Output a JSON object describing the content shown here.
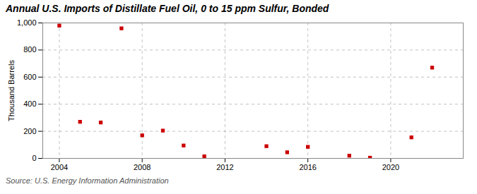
{
  "chart_data": {
    "type": "scatter",
    "title": "Annual U.S. Imports of Distillate Fuel Oil, 0 to 15 ppm Sulfur, Bonded",
    "ylabel": "Thousand Barrels",
    "caption": "Source: U.S. Energy Information Administration",
    "x": [
      2004,
      2005,
      2006,
      2007,
      2008,
      2009,
      2010,
      2011,
      2014,
      2015,
      2016,
      2018,
      2019,
      2021,
      2022
    ],
    "values": [
      980,
      270,
      265,
      960,
      170,
      205,
      95,
      15,
      90,
      45,
      85,
      20,
      5,
      155,
      670
    ],
    "color": "#cc0000",
    "marker": "square",
    "xlim": [
      2003.2,
      2023.5
    ],
    "xticks": [
      2004,
      2008,
      2012,
      2016,
      2020
    ],
    "ylim": [
      0,
      1000
    ],
    "yticks": [
      0,
      200,
      400,
      600,
      800,
      {
        "value": 1000,
        "label": "1,000"
      }
    ],
    "grid": true
  }
}
